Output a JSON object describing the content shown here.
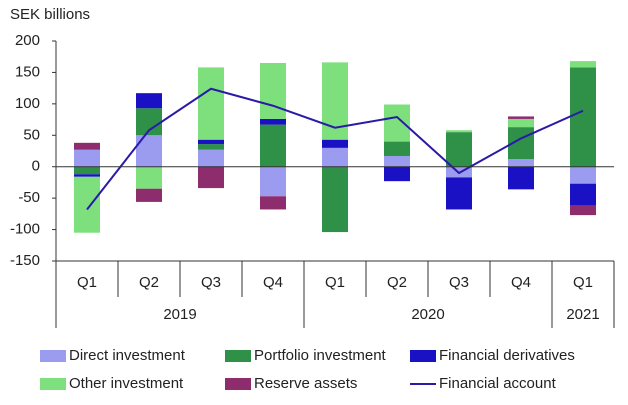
{
  "chart_data": {
    "type": "stacked-bar-line",
    "y_label": "SEK billions",
    "categories": [
      "Q1",
      "Q2",
      "Q3",
      "Q4",
      "Q1",
      "Q2",
      "Q3",
      "Q4",
      "Q1"
    ],
    "groups": [
      {
        "label": "2019",
        "count": 4
      },
      {
        "label": "2020",
        "count": 4
      },
      {
        "label": "2021",
        "count": 1
      }
    ],
    "series": [
      {
        "name": "Direct investment",
        "color": "#9b9cf0",
        "values": [
          27,
          50,
          27,
          -47,
          30,
          17,
          -17,
          12,
          -27
        ]
      },
      {
        "name": "Portfolio investment",
        "color": "#2e9147",
        "values": [
          -12,
          43,
          9,
          67,
          -104,
          23,
          55,
          51,
          158
        ]
      },
      {
        "name": "Financial derivatives",
        "color": "#1a10c4",
        "values": [
          -4,
          24,
          7,
          9,
          13,
          -23,
          -51,
          -36,
          -35
        ]
      },
      {
        "name": "Other investment",
        "color": "#7de07d",
        "values": [
          -89,
          -35,
          115,
          89,
          123,
          59,
          3,
          13,
          10
        ]
      },
      {
        "name": "Reserve assets",
        "color": "#8e2d6e",
        "values": [
          11,
          -21,
          -34,
          -21,
          0,
          0,
          0,
          4,
          -15
        ]
      }
    ],
    "line": {
      "name": "Financial account",
      "color": "#2a1aa8",
      "values": [
        -68,
        58,
        124,
        97,
        62,
        79,
        -10,
        45,
        89
      ]
    },
    "ylim": [
      -150,
      200
    ],
    "yticks": [
      -150,
      -100,
      -50,
      0,
      50,
      100,
      150,
      200
    ]
  }
}
